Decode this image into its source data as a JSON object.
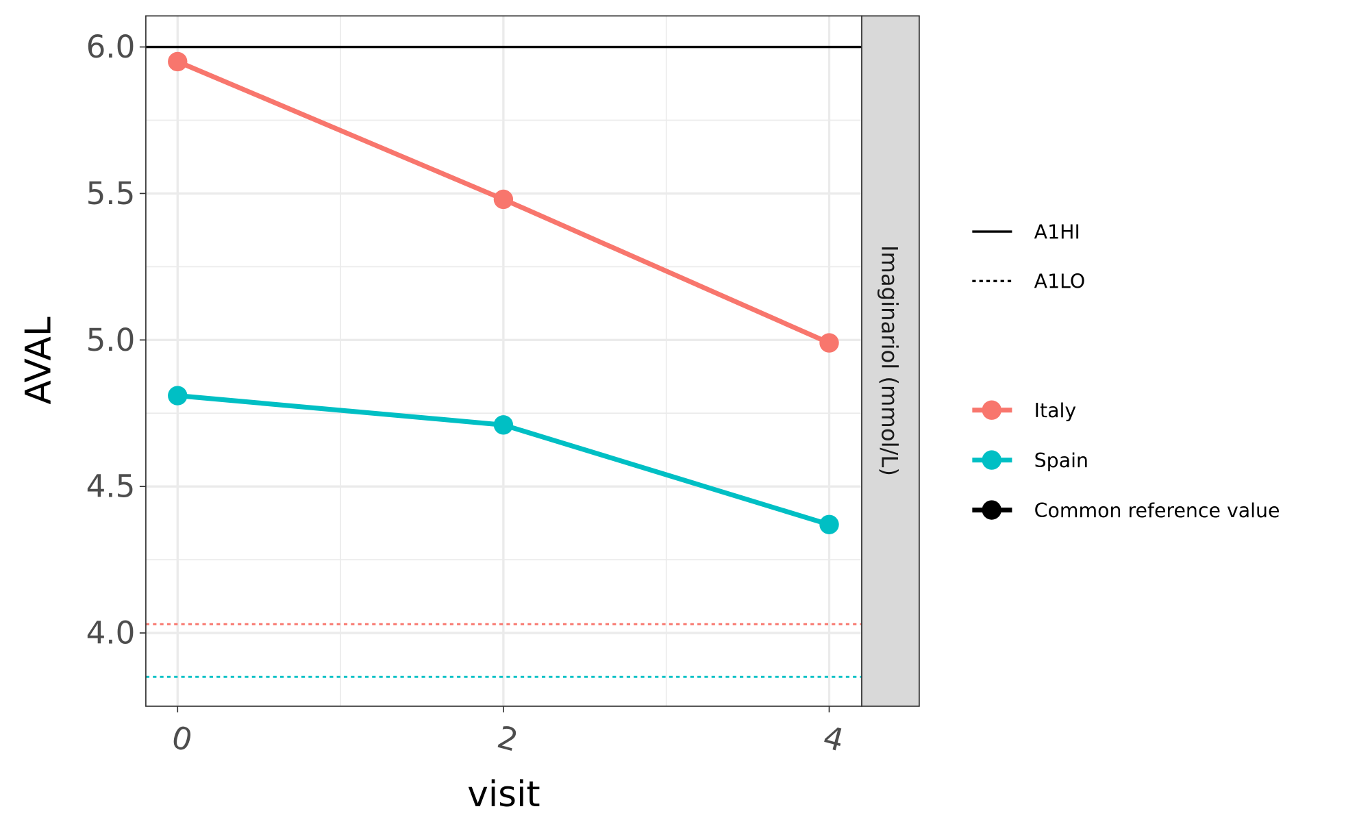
{
  "chart_data": {
    "type": "line",
    "title": "",
    "xlabel": "visit",
    "ylabel": "AVAL",
    "facet_label": "Imaginariol (mmol/L)",
    "x": [
      0,
      2,
      4
    ],
    "xticks": [
      "0",
      "2",
      "4"
    ],
    "yticks": [
      "4.0",
      "4.5",
      "5.0",
      "5.5",
      "6.0"
    ],
    "ytick_values": [
      4.0,
      4.5,
      5.0,
      5.5,
      6.0
    ],
    "xlim": [
      -0.195,
      4.2
    ],
    "ylim": [
      3.75,
      6.106
    ],
    "grid": true,
    "series": [
      {
        "name": "Italy",
        "color": "#F8766D",
        "values": [
          5.95,
          5.48,
          4.99
        ]
      },
      {
        "name": "Spain",
        "color": "#00BFC4",
        "values": [
          4.81,
          4.71,
          4.37
        ]
      }
    ],
    "reference_lines": [
      {
        "name": "A1HI",
        "group": "Common reference value",
        "value": 6.0,
        "color": "#000000",
        "style": "solid"
      },
      {
        "name": "A1LO",
        "group": "Italy",
        "value": 4.03,
        "color": "#F8766D",
        "style": "dotted"
      },
      {
        "name": "A1LO",
        "group": "Spain",
        "value": 3.85,
        "color": "#00BFC4",
        "style": "dotted"
      }
    ],
    "legend": {
      "placement": "right",
      "linetype_items": [
        {
          "label": "A1HI",
          "style": "solid"
        },
        {
          "label": "A1LO",
          "style": "dotted"
        }
      ],
      "color_items": [
        {
          "label": "Italy",
          "color": "#F8766D"
        },
        {
          "label": "Spain",
          "color": "#00BFC4"
        },
        {
          "label": "Common reference value",
          "color": "#000000"
        }
      ]
    }
  }
}
